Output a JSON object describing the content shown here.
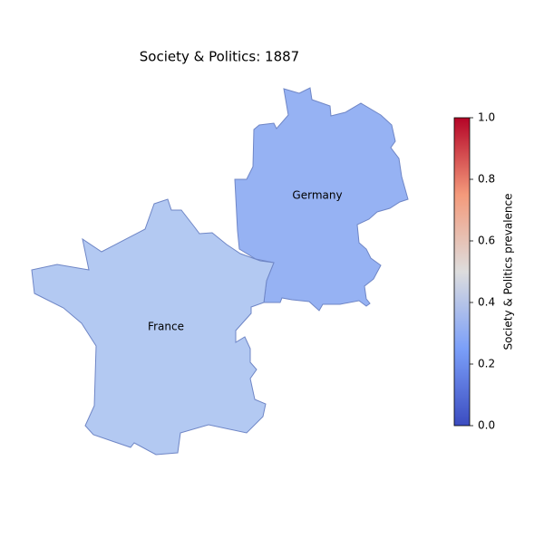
{
  "chart_data": {
    "type": "choropleth",
    "title": "Society & Politics: 1887",
    "regions": [
      {
        "name": "Germany",
        "value": 0.33,
        "color": "#96b2f3"
      },
      {
        "name": "France",
        "value": 0.42,
        "color": "#b3c9f2"
      }
    ],
    "colorbar_label": "Society & Politics prevalence",
    "colormap": [
      "#3b4cc0",
      "#7b9ff9",
      "#dddddd",
      "#f49a7b",
      "#b40426"
    ],
    "clim": [
      0,
      1
    ],
    "cticks": [
      {
        "value": 0,
        "label": "0.0"
      },
      {
        "value": 0.2,
        "label": "0.2"
      },
      {
        "value": 0.4,
        "label": "0.4"
      },
      {
        "value": 0.6,
        "label": "0.6"
      },
      {
        "value": 0.8,
        "label": "0.8"
      },
      {
        "value": 1,
        "label": "1.0"
      }
    ]
  }
}
